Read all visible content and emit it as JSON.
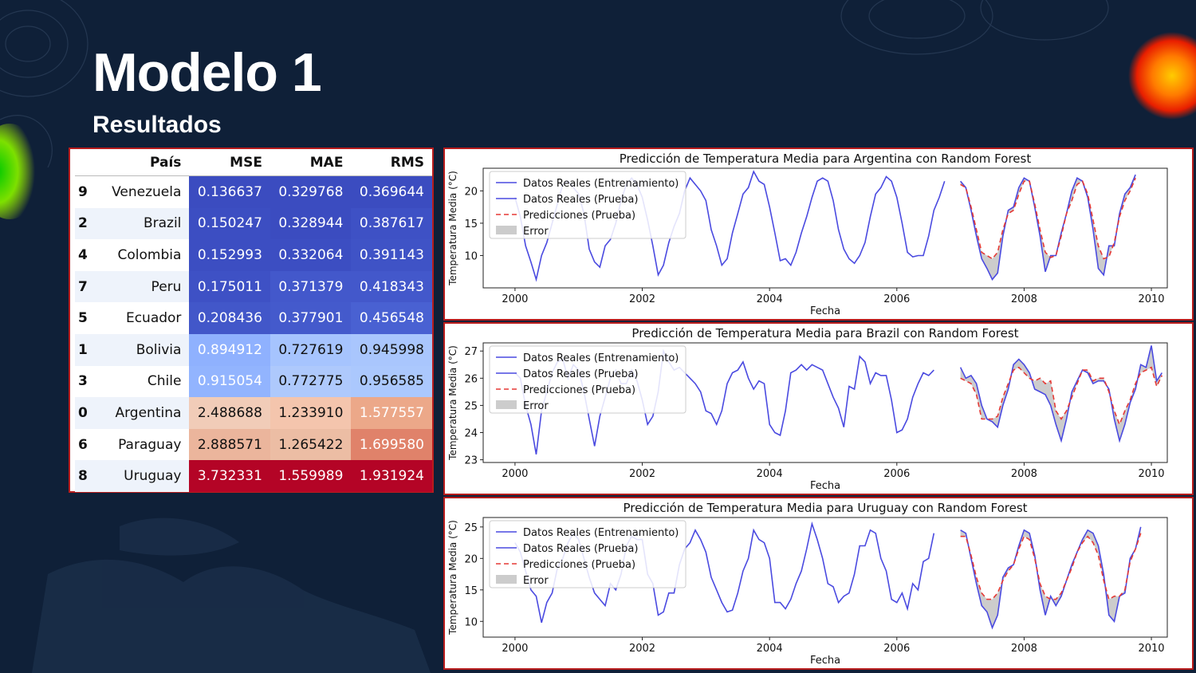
{
  "slide": {
    "title": "Modelo 1",
    "subtitle": "Resultados"
  },
  "colors": {
    "background": "#0f2038",
    "frame": "#b71c1c",
    "real_line": "#4a4ae0",
    "prediction_line": "#e53935",
    "error_fill": "#cccccc"
  },
  "table": {
    "headers": [
      "",
      "País",
      "MSE",
      "MAE",
      "RMS"
    ],
    "rows": [
      {
        "idx": "9",
        "country": "Venezuela",
        "mse": "0.136637",
        "mae": "0.329768",
        "rms": "0.369644",
        "mse_color": "#3b4cc0",
        "mae_color": "#3b4cc0",
        "rms_color": "#3b4cc0",
        "mse_text": "#ffffff",
        "mae_text": "#ffffff",
        "rms_text": "#ffffff"
      },
      {
        "idx": "2",
        "country": "Brazil",
        "mse": "0.150247",
        "mae": "0.328944",
        "rms": "0.387617",
        "mse_color": "#3c4ec2",
        "mae_color": "#3b4cc0",
        "rms_color": "#3e51c5",
        "mse_text": "#ffffff",
        "mae_text": "#ffffff",
        "rms_text": "#ffffff"
      },
      {
        "idx": "4",
        "country": "Colombia",
        "mse": "0.152993",
        "mae": "0.332064",
        "rms": "0.391143",
        "mse_color": "#3c4ec2",
        "mae_color": "#3c4ec2",
        "rms_color": "#3f53c6",
        "mse_text": "#ffffff",
        "mae_text": "#ffffff",
        "rms_text": "#ffffff"
      },
      {
        "idx": "7",
        "country": "Peru",
        "mse": "0.175011",
        "mae": "0.371379",
        "rms": "0.418343",
        "mse_color": "#3e51c5",
        "mae_color": "#4358cb",
        "rms_color": "#4358cb",
        "mse_text": "#ffffff",
        "mae_text": "#ffffff",
        "rms_text": "#ffffff"
      },
      {
        "idx": "5",
        "country": "Ecuador",
        "mse": "0.208436",
        "mae": "0.377901",
        "rms": "0.456548",
        "mse_color": "#4257c9",
        "mae_color": "#445acc",
        "rms_color": "#4961d2",
        "mse_text": "#ffffff",
        "mae_text": "#ffffff",
        "rms_text": "#ffffff"
      },
      {
        "idx": "1",
        "country": "Bolivia",
        "mse": "0.894912",
        "mae": "0.727619",
        "rms": "0.945998",
        "mse_color": "#8fb1fe",
        "mae_color": "#a6c4fe",
        "rms_color": "#a9c6fd",
        "mse_text": "#ffffff",
        "mae_text": "#111111",
        "rms_text": "#111111"
      },
      {
        "idx": "3",
        "country": "Chile",
        "mse": "0.915054",
        "mae": "0.772775",
        "rms": "0.956585",
        "mse_color": "#92b4fe",
        "mae_color": "#aec9fc",
        "rms_color": "#abc8fd",
        "mse_text": "#ffffff",
        "mae_text": "#111111",
        "rms_text": "#111111"
      },
      {
        "idx": "0",
        "country": "Argentina",
        "mse": "2.488688",
        "mae": "1.233910",
        "rms": "1.577557",
        "mse_color": "#f1ccb8",
        "mae_color": "#f4c5ad",
        "rms_color": "#eca889",
        "mse_text": "#111111",
        "mae_text": "#111111",
        "rms_text": "#ffffff"
      },
      {
        "idx": "6",
        "country": "Paraguay",
        "mse": "2.888571",
        "mae": "1.265422",
        "rms": "1.699580",
        "mse_color": "#ebb59c",
        "mae_color": "#ecbda4",
        "rms_color": "#e0826a",
        "mse_text": "#111111",
        "mae_text": "#111111",
        "rms_text": "#ffffff"
      },
      {
        "idx": "8",
        "country": "Uruguay",
        "mse": "3.732331",
        "mae": "1.559989",
        "rms": "1.931924",
        "mse_color": "#b40426",
        "mae_color": "#b40426",
        "rms_color": "#b40426",
        "mse_text": "#ffffff",
        "mae_text": "#ffffff",
        "rms_text": "#ffffff"
      }
    ]
  },
  "chart_data": [
    {
      "type": "line",
      "title": "Predicción de Temperatura Media para Argentina con Random Forest",
      "xlabel": "Fecha",
      "ylabel": "Temperatura Media (°C)",
      "xlim": [
        1999.5,
        2010.25
      ],
      "ylim": [
        5,
        23.5
      ],
      "xticks": [
        "2000",
        "2002",
        "2004",
        "2006",
        "2008",
        "2010"
      ],
      "yticks": [
        "10",
        "15",
        "20"
      ],
      "legend": [
        "Datos Reales (Entrenamiento)",
        "Datos Reales (Prueba)",
        "Predicciones (Prueba)",
        "Error"
      ],
      "train": {
        "start": 2000.0,
        "values": [
          19.0,
          16.0,
          11.5,
          9.0,
          6.3,
          10.0,
          12.0,
          15.0,
          18.0,
          21.0,
          21.5,
          20.5,
          19.5,
          16.5,
          11.0,
          9.0,
          8.2,
          11.5,
          12.5,
          15.0,
          18.5,
          21.0,
          22.0,
          21.0,
          19.0,
          15.5,
          11.5,
          7.0,
          8.5,
          12.0,
          14.5,
          16.5,
          20.0,
          22.0,
          21.0,
          20.0,
          18.5,
          14.0,
          11.5,
          8.5,
          9.5,
          13.5,
          16.5,
          19.5,
          20.5,
          23.0,
          21.5,
          21.0,
          17.5,
          13.5,
          9.2,
          9.5,
          8.5,
          10.5,
          13.5,
          16.0,
          19.0,
          21.5,
          22.0,
          21.5,
          18.5,
          14.0,
          11.0,
          9.5,
          8.8,
          10.0,
          12.0,
          16.0,
          19.5,
          20.5,
          22.2,
          21.5,
          19.0,
          15.0,
          10.5,
          9.8,
          10.0,
          10.0,
          13.0,
          17.0,
          19.0,
          21.5
        ]
      },
      "test": {
        "start": 2007.0,
        "values": [
          21.5,
          20.5,
          17.0,
          13.0,
          9.5,
          8.0,
          6.3,
          7.3,
          13.0,
          17.0,
          17.5,
          20.5,
          22.0,
          21.5,
          17.5,
          13.0,
          7.5,
          10.0,
          10.0,
          13.5,
          16.5,
          20.0,
          22.0,
          21.5,
          19.0,
          14.0,
          8.0,
          7.0,
          11.5,
          11.5,
          16.5,
          19.5,
          20.5,
          22.5
        ]
      },
      "pred": {
        "start": 2007.0,
        "values": [
          21.0,
          20.5,
          17.5,
          14.0,
          10.5,
          10.0,
          9.5,
          10.5,
          14.0,
          16.5,
          17.0,
          19.5,
          21.5,
          21.5,
          18.0,
          14.0,
          10.5,
          9.7,
          10.0,
          13.0,
          16.5,
          18.5,
          21.0,
          21.5,
          19.5,
          15.5,
          11.5,
          9.5,
          9.8,
          12.0,
          16.0,
          18.5,
          20.0,
          22.0
        ]
      }
    },
    {
      "type": "line",
      "title": "Predicción de Temperatura Media para Brazil con Random Forest",
      "xlabel": "Fecha",
      "ylabel": "Temperatura Media (°C)",
      "xlim": [
        1999.5,
        2010.25
      ],
      "ylim": [
        22.9,
        27.3
      ],
      "xticks": [
        "2000",
        "2002",
        "2004",
        "2006",
        "2008",
        "2010"
      ],
      "yticks": [
        "23",
        "24",
        "25",
        "26",
        "27"
      ],
      "legend": [
        "Datos Reales (Entrenamiento)",
        "Datos Reales (Prueba)",
        "Predicciones (Prueba)",
        "Error"
      ],
      "train": {
        "start": 2000.0,
        "values": [
          26.2,
          26.0,
          25.0,
          24.3,
          23.2,
          24.8,
          25.5,
          26.2,
          26.6,
          26.7,
          26.0,
          26.5,
          26.3,
          25.5,
          24.5,
          23.5,
          24.6,
          25.3,
          26.0,
          26.3,
          25.8,
          25.8,
          26.3,
          25.9,
          25.2,
          24.3,
          24.6,
          25.5,
          27.0,
          26.6,
          26.3,
          26.4,
          26.2,
          26.0,
          25.8,
          25.5,
          24.8,
          24.7,
          24.3,
          24.8,
          25.8,
          26.2,
          26.3,
          26.6,
          26.0,
          25.6,
          25.9,
          25.8,
          24.3,
          24.0,
          23.9,
          24.8,
          26.2,
          26.3,
          26.5,
          26.3,
          26.5,
          26.4,
          26.3,
          25.8,
          25.3,
          24.9,
          24.2,
          25.7,
          25.6,
          26.8,
          26.6,
          25.8,
          26.2,
          26.1,
          26.1,
          25.2,
          24.0,
          24.1,
          24.5,
          25.3,
          25.8,
          26.2,
          26.1,
          26.3
        ]
      },
      "test": {
        "start": 2007.0,
        "values": [
          26.4,
          26.0,
          26.1,
          25.8,
          25.0,
          24.5,
          24.4,
          24.2,
          25.0,
          25.6,
          26.5,
          26.7,
          26.5,
          26.2,
          25.6,
          25.5,
          25.4,
          25.0,
          24.3,
          23.7,
          24.5,
          25.5,
          25.9,
          26.3,
          26.2,
          25.8,
          25.9,
          25.9,
          25.6,
          24.5,
          23.7,
          24.3,
          25.1,
          25.6,
          26.5,
          26.4,
          27.2,
          25.9,
          26.2
        ]
      },
      "pred": {
        "start": 2007.0,
        "values": [
          26.0,
          25.9,
          25.8,
          25.4,
          24.5,
          24.5,
          24.5,
          24.6,
          25.3,
          25.8,
          26.3,
          26.4,
          26.2,
          26.0,
          25.9,
          26.0,
          25.8,
          25.9,
          24.8,
          24.5,
          24.8,
          25.3,
          25.8,
          26.3,
          26.3,
          25.9,
          26.0,
          26.0,
          25.5,
          24.8,
          24.3,
          24.8,
          25.2,
          25.8,
          26.2,
          26.3,
          26.4,
          25.7,
          26.1
        ]
      }
    },
    {
      "type": "line",
      "title": "Predicción de Temperatura Media para Uruguay con Random Forest",
      "xlabel": "Fecha",
      "ylabel": "Temperatura Media (°C)",
      "xlim": [
        1999.5,
        2010.25
      ],
      "ylim": [
        7.5,
        26.5
      ],
      "xticks": [
        "2000",
        "2002",
        "2004",
        "2006",
        "2008",
        "2010"
      ],
      "yticks": [
        "10",
        "15",
        "20",
        "25"
      ],
      "legend": [
        "Datos Reales (Entrenamiento)",
        "Datos Reales (Prueba)",
        "Predicciones (Prueba)",
        "Error"
      ],
      "train": {
        "start": 2000.0,
        "values": [
          22.5,
          21.0,
          18.0,
          15.0,
          14.0,
          9.8,
          13.0,
          14.5,
          18.5,
          20.0,
          22.5,
          24.0,
          23.0,
          20.0,
          17.0,
          14.5,
          13.5,
          12.5,
          16.0,
          15.0,
          17.5,
          22.0,
          23.5,
          23.0,
          23.0,
          17.5,
          16.0,
          11.0,
          11.5,
          14.5,
          14.5,
          19.0,
          21.5,
          22.5,
          24.5,
          23.0,
          21.0,
          17.0,
          15.0,
          13.0,
          11.5,
          11.8,
          14.5,
          18.0,
          20.0,
          24.5,
          23.0,
          22.5,
          20.0,
          13.0,
          13.0,
          12.0,
          13.5,
          16.0,
          18.0,
          21.5,
          25.5,
          23.0,
          20.0,
          16.0,
          15.5,
          13.0,
          14.0,
          14.5,
          17.5,
          22.0,
          22.0,
          24.5,
          24.0,
          20.0,
          18.0,
          13.5,
          13.0,
          14.5,
          12.0,
          16.0,
          15.0,
          19.5,
          20.0,
          24.0
        ]
      },
      "test": {
        "start": 2007.0,
        "values": [
          24.5,
          24.0,
          20.0,
          16.0,
          12.5,
          11.5,
          9.0,
          11.0,
          17.0,
          18.5,
          19.0,
          22.0,
          24.5,
          24.0,
          20.5,
          15.0,
          11.0,
          14.0,
          12.5,
          14.0,
          16.5,
          19.0,
          21.0,
          23.0,
          24.5,
          24.0,
          22.0,
          17.5,
          11.0,
          10.0,
          14.0,
          14.5,
          20.0,
          21.5,
          25.0
        ]
      },
      "pred": {
        "start": 2007.0,
        "values": [
          23.5,
          23.5,
          20.5,
          17.0,
          14.5,
          13.5,
          13.5,
          14.5,
          16.5,
          18.0,
          19.0,
          21.5,
          23.5,
          23.0,
          20.0,
          16.0,
          14.0,
          13.5,
          13.5,
          14.5,
          16.5,
          18.5,
          21.0,
          22.5,
          23.5,
          22.5,
          20.5,
          16.5,
          13.5,
          14.0,
          14.0,
          15.0,
          19.5,
          21.5,
          24.0
        ]
      }
    }
  ]
}
